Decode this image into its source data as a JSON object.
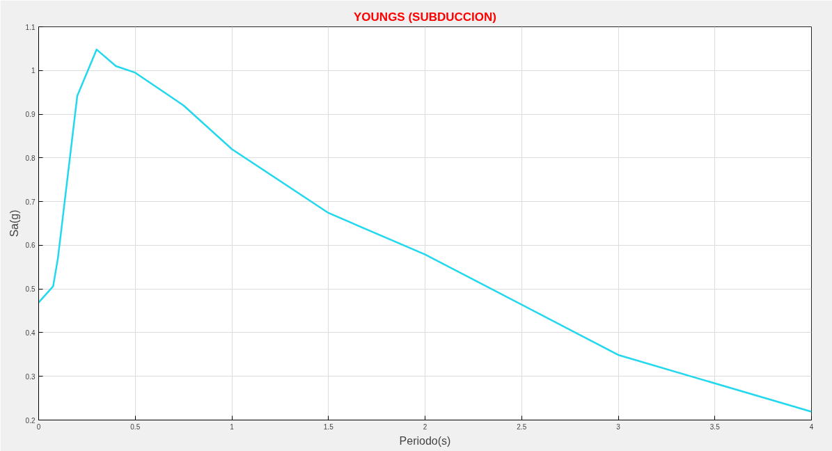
{
  "chart_data": {
    "type": "line",
    "title": "YOUNGS (SUBDUCCION)",
    "xlabel": "Periodo(s)",
    "ylabel": "Sa(g)",
    "x": [
      0,
      0.075,
      0.1,
      0.2,
      0.3,
      0.4,
      0.5,
      0.75,
      1,
      1.5,
      2,
      3,
      4
    ],
    "series": [
      {
        "color": "#22d8ee",
        "values": [
          0.469,
          0.506,
          0.571,
          0.942,
          1.048,
          1.01,
          0.995,
          0.92,
          0.82,
          0.674,
          0.579,
          0.349,
          0.219
        ]
      }
    ],
    "xlim": [
      0,
      4
    ],
    "xticks": [
      0,
      0.5,
      1,
      1.5,
      2,
      2.5,
      3,
      3.5,
      4
    ],
    "ylim": [
      0.2,
      1.1
    ],
    "yticks": [
      0.2,
      0.3,
      0.4,
      0.5,
      0.6,
      0.7,
      0.8,
      0.9,
      1,
      1.1
    ],
    "grid": true,
    "marker": "none",
    "line_style": "solid"
  }
}
